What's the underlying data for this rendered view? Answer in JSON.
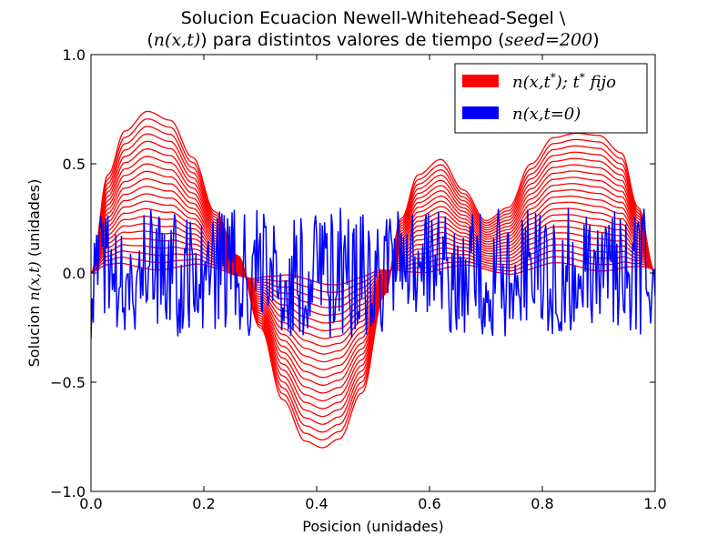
{
  "chart_data": {
    "type": "line",
    "title_line1": "Solucion Ecuacion Newell-Whitehead-Segel \\",
    "title_line2_prefix": "(",
    "title_line2_math": "n(x,t)",
    "title_line2_mid": ") para distintos valores de tiempo (",
    "title_line2_math2": "seed=200",
    "title_line2_suffix": ")",
    "xlabel": "Posicion (unidades)",
    "ylabel_prefix": "Solucion ",
    "ylabel_math": "n(x,t)",
    "ylabel_suffix": " (unidades)",
    "xlim": [
      0.0,
      1.0
    ],
    "ylim": [
      -1.0,
      1.0
    ],
    "xticks": [
      0.0,
      0.2,
      0.4,
      0.6,
      0.8,
      1.0
    ],
    "xtick_labels": [
      "0.0",
      "0.2",
      "0.4",
      "0.6",
      "0.8",
      "1.0"
    ],
    "yticks": [
      -1.0,
      -0.5,
      0.0,
      0.5,
      1.0
    ],
    "ytick_labels": [
      "−1.0",
      "−0.5",
      "0.0",
      "0.5",
      "1.0"
    ],
    "grid": false,
    "legend_position": "top-right",
    "legend": [
      {
        "label": "n(x,t*); t* fijo",
        "color": "#ff0000"
      },
      {
        "label": "n(x,t=0)",
        "color": "#0000ff"
      }
    ],
    "colors": {
      "fixed_time": "#ff0000",
      "initial": "#0000ff"
    },
    "fixed_time_curve_count": 22,
    "envelope": {
      "x": [
        0.0,
        0.03,
        0.06,
        0.1,
        0.14,
        0.18,
        0.22,
        0.26,
        0.3,
        0.34,
        0.38,
        0.41,
        0.44,
        0.48,
        0.52,
        0.55,
        0.58,
        0.62,
        0.66,
        0.7,
        0.74,
        0.78,
        0.82,
        0.86,
        0.9,
        0.94,
        0.97,
        1.0
      ],
      "y": [
        0.0,
        0.45,
        0.65,
        0.74,
        0.7,
        0.53,
        0.28,
        0.08,
        -0.25,
        -0.58,
        -0.77,
        -0.8,
        -0.76,
        -0.55,
        -0.1,
        0.25,
        0.45,
        0.52,
        0.38,
        0.24,
        0.3,
        0.5,
        0.62,
        0.64,
        0.63,
        0.55,
        0.3,
        0.0
      ]
    },
    "initial_amplitude": 0.3,
    "initial_point_count": 500
  }
}
